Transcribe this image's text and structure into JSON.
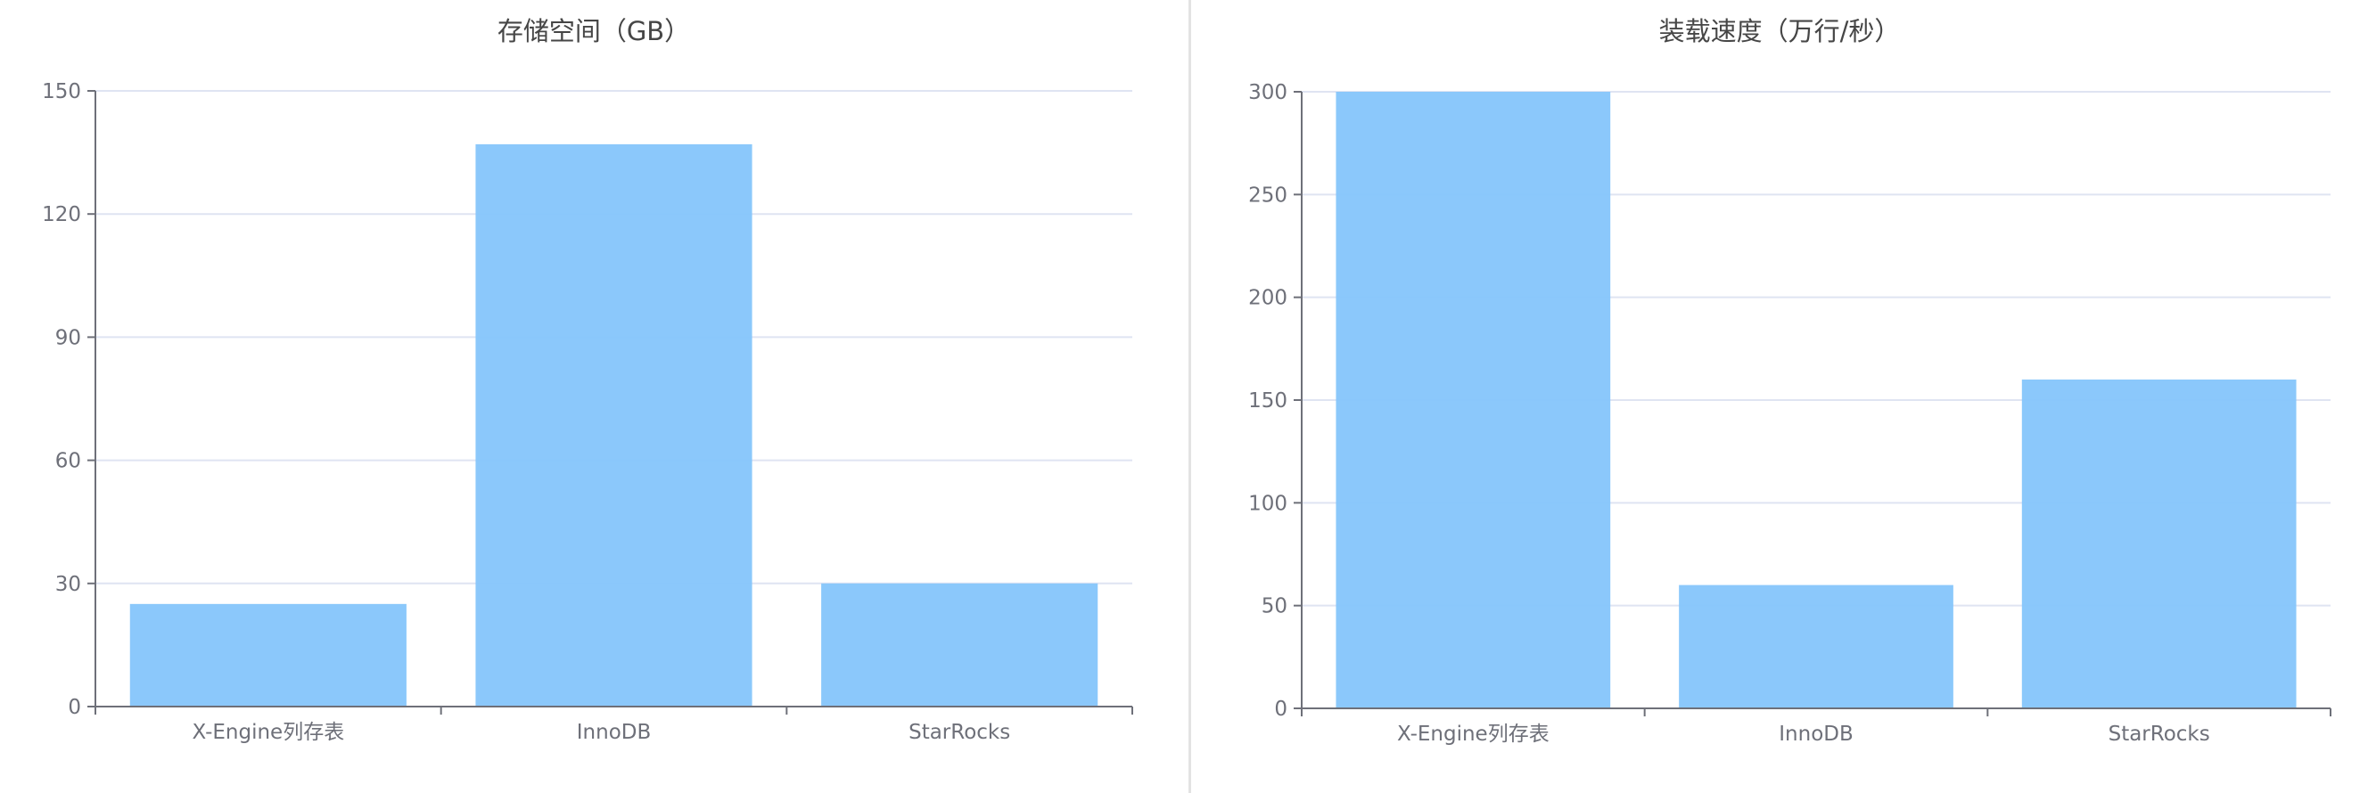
{
  "chart_data": [
    {
      "type": "bar",
      "title": "存储空间（GB）",
      "categories": [
        "X-Engine列存表",
        "InnoDB",
        "StarRocks"
      ],
      "values": [
        25,
        137,
        30
      ],
      "ylim": [
        0,
        150
      ],
      "yticks": [
        0,
        30,
        60,
        90,
        120,
        150
      ],
      "xlabel": "",
      "ylabel": "",
      "grid": true,
      "bar_color": "#85c5fb"
    },
    {
      "type": "bar",
      "title": "装载速度（万行/秒）",
      "categories": [
        "X-Engine列存表",
        "InnoDB",
        "StarRocks"
      ],
      "values": [
        300,
        60,
        160
      ],
      "ylim": [
        0,
        300
      ],
      "yticks": [
        0,
        50,
        100,
        150,
        200,
        250,
        300
      ],
      "xlabel": "",
      "ylabel": "",
      "grid": true,
      "bar_color": "#85c5fb"
    }
  ]
}
